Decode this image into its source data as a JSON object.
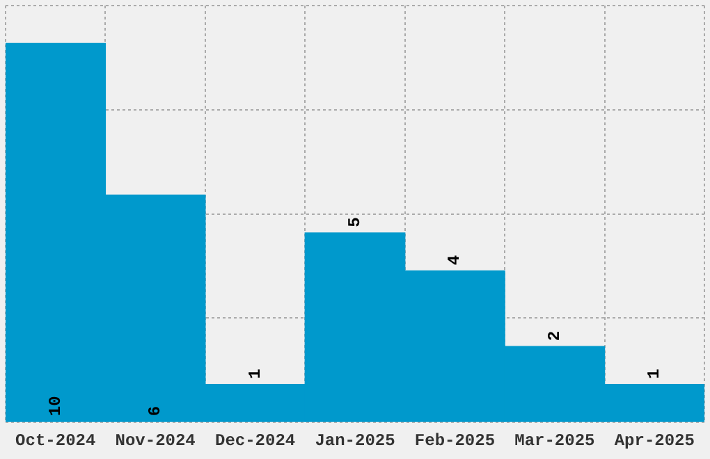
{
  "chart_data": {
    "type": "bar",
    "categories": [
      "Oct-2024",
      "Nov-2024",
      "Dec-2024",
      "Jan-2025",
      "Feb-2025",
      "Mar-2025",
      "Apr-2025"
    ],
    "values": [
      10,
      6,
      1,
      5,
      4,
      2,
      1
    ],
    "color": "#0099cc",
    "data_labels": true,
    "grid": true,
    "tick_labels": "x",
    "ylim": [
      0,
      11
    ],
    "yticks": [
      {
        "value": 0,
        "label": null
      },
      {
        "value": 2.75,
        "label": null
      },
      {
        "value": 5.5,
        "label": null
      },
      {
        "value": 8.25,
        "label": null
      },
      {
        "value": 11,
        "label": null
      }
    ]
  }
}
